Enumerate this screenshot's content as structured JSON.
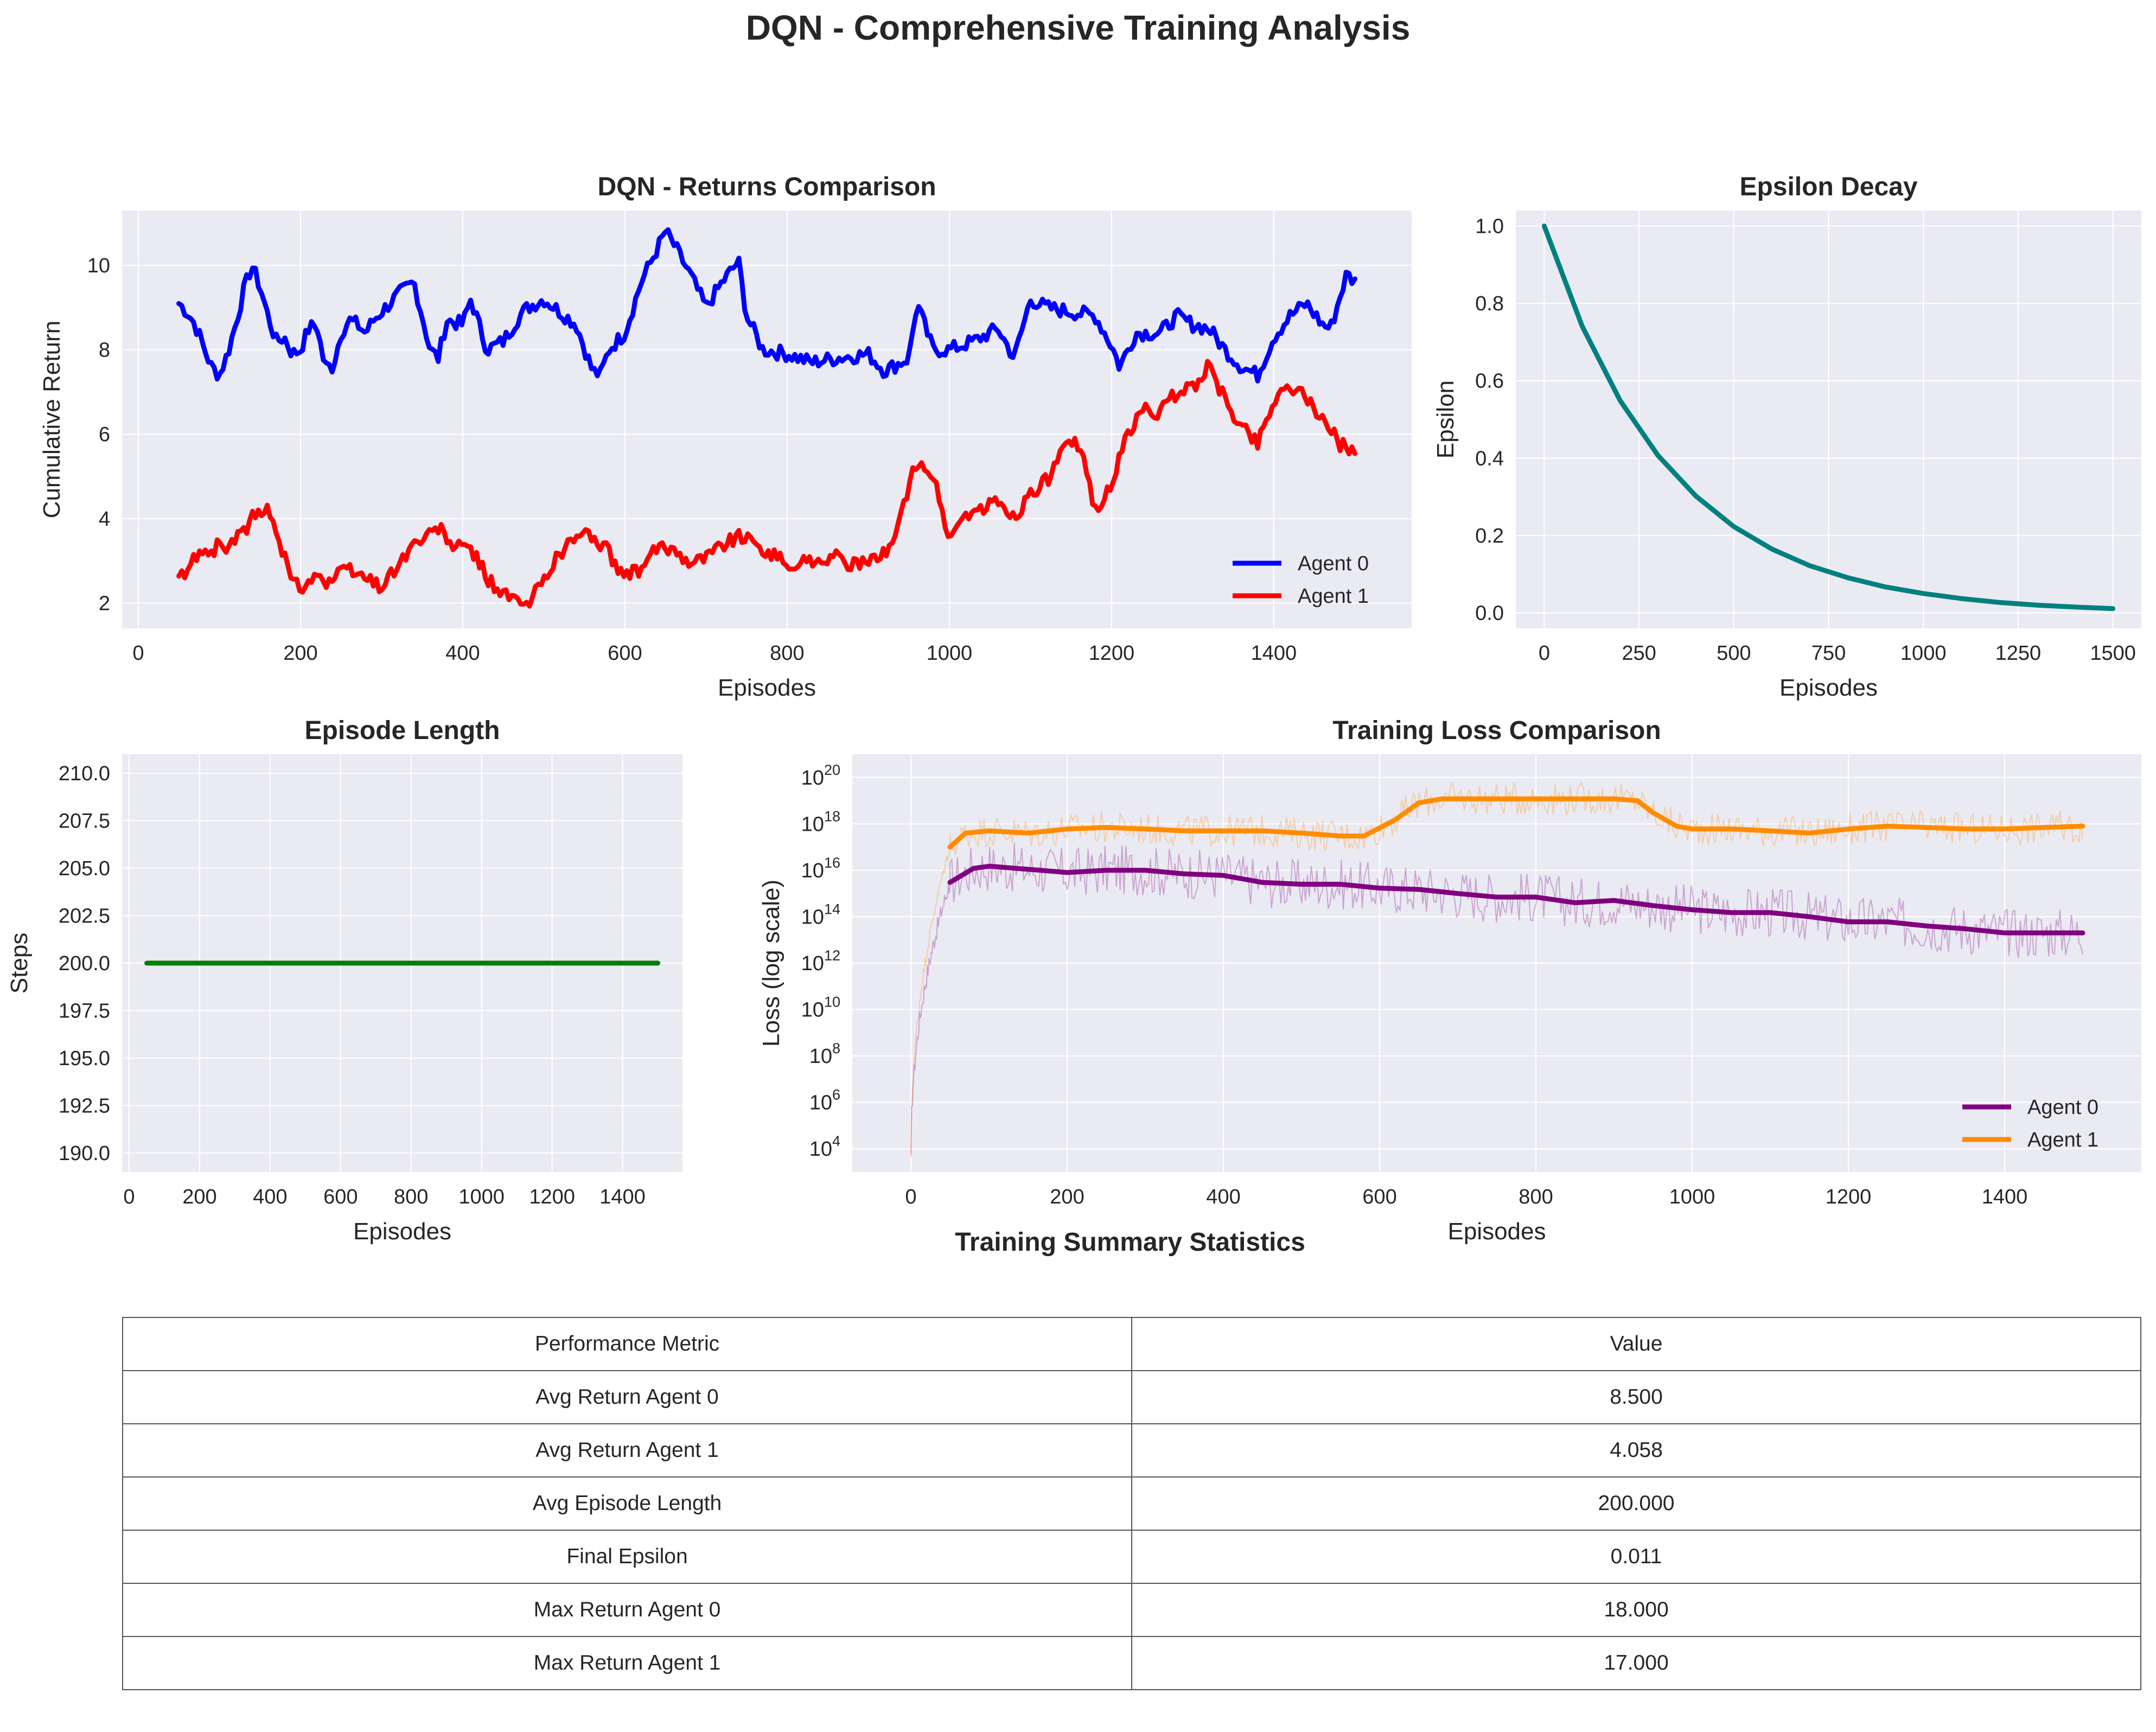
{
  "figure": {
    "title": "DQN - Comprehensive Training Analysis"
  },
  "colors": {
    "agent0_returns": "#0000ff",
    "agent1_returns": "#ff0000",
    "epsilon": "#008080",
    "episode_length": "#008000",
    "agent0_loss": "#800080",
    "agent1_loss": "#ff8c00",
    "axes_background": "#eaeaf2"
  },
  "chart_data": [
    {
      "id": "returns",
      "type": "line",
      "title": "DQN - Returns Comparison",
      "xlabel": "Episodes",
      "ylabel": "Cumulative Return",
      "xlim": [
        -20,
        1570
      ],
      "ylim": [
        1.4,
        11.3
      ],
      "xticks": [
        0,
        200,
        400,
        600,
        800,
        1000,
        1200,
        1400
      ],
      "yticks": [
        2,
        4,
        6,
        8,
        10
      ],
      "grid": true,
      "legend": "lower-right",
      "series": [
        {
          "name": "Agent 0",
          "color": "#0000ff",
          "x": [
            50,
            60,
            70,
            80,
            90,
            100,
            110,
            120,
            130,
            140,
            150,
            160,
            170,
            180,
            190,
            200,
            210,
            220,
            230,
            240,
            250,
            260,
            270,
            280,
            290,
            300,
            320,
            340,
            360,
            370,
            380,
            400,
            410,
            430,
            450,
            470,
            480,
            500,
            520,
            540,
            560,
            570,
            580,
            600,
            620,
            640,
            650,
            660,
            680,
            700,
            720,
            740,
            750,
            770,
            800,
            830,
            860,
            900,
            920,
            950,
            960,
            980,
            1000,
            1030,
            1060,
            1080,
            1100,
            1120,
            1150,
            1180,
            1200,
            1210,
            1230,
            1260,
            1280,
            1300,
            1320,
            1340,
            1360,
            1380,
            1400,
            1420,
            1440,
            1460,
            1470,
            1490,
            1500
          ],
          "y": [
            9.1,
            8.9,
            8.6,
            8.1,
            7.6,
            7.4,
            7.9,
            8.6,
            9.4,
            10.0,
            9.5,
            8.8,
            8.2,
            8.3,
            7.9,
            8.0,
            8.5,
            8.6,
            7.6,
            7.6,
            8.4,
            8.7,
            8.6,
            8.4,
            8.7,
            8.9,
            9.3,
            9.6,
            8.0,
            7.8,
            8.7,
            8.6,
            9.2,
            8.0,
            8.2,
            8.8,
            9.0,
            9.2,
            8.9,
            8.6,
            7.5,
            7.4,
            8.0,
            8.4,
            9.6,
            10.4,
            10.8,
            10.5,
            9.8,
            9.0,
            9.6,
            10.1,
            8.8,
            8.0,
            7.9,
            7.7,
            7.8,
            7.9,
            7.5,
            7.8,
            9.1,
            8.0,
            8.0,
            8.2,
            8.5,
            7.8,
            9.2,
            9.0,
            8.9,
            8.8,
            8.1,
            7.6,
            8.4,
            8.4,
            8.8,
            8.6,
            8.5,
            8.0,
            7.6,
            7.4,
            8.3,
            8.8,
            9.1,
            8.6,
            8.5,
            9.8,
            9.6
          ]
        },
        {
          "name": "Agent 1",
          "color": "#ff0000",
          "x": [
            50,
            60,
            70,
            80,
            90,
            100,
            110,
            120,
            130,
            140,
            150,
            160,
            170,
            180,
            190,
            200,
            210,
            220,
            230,
            240,
            260,
            280,
            300,
            320,
            340,
            360,
            370,
            390,
            410,
            430,
            450,
            470,
            480,
            500,
            520,
            540,
            560,
            580,
            600,
            620,
            640,
            660,
            680,
            700,
            720,
            740,
            760,
            780,
            800,
            830,
            860,
            880,
            900,
            920,
            940,
            960,
            980,
            1000,
            1020,
            1040,
            1060,
            1080,
            1100,
            1120,
            1140,
            1160,
            1180,
            1200,
            1220,
            1240,
            1260,
            1280,
            1300,
            1320,
            1340,
            1360,
            1380,
            1400,
            1420,
            1440,
            1460,
            1480,
            1500
          ],
          "y": [
            2.6,
            2.7,
            3.1,
            3.3,
            3.2,
            3.4,
            3.3,
            3.5,
            3.7,
            4.0,
            4.1,
            4.2,
            3.8,
            3.1,
            2.5,
            2.4,
            2.5,
            2.8,
            2.4,
            2.6,
            2.8,
            2.6,
            2.4,
            2.9,
            3.4,
            3.6,
            3.8,
            3.3,
            3.3,
            2.6,
            2.2,
            2.0,
            1.9,
            2.6,
            3.2,
            3.6,
            3.6,
            3.2,
            2.6,
            2.8,
            3.3,
            3.3,
            3.0,
            3.1,
            3.4,
            3.6,
            3.4,
            3.2,
            2.9,
            3.0,
            3.1,
            2.9,
            2.9,
            3.2,
            4.0,
            5.4,
            5.0,
            3.5,
            4.1,
            4.2,
            4.4,
            4.0,
            4.6,
            4.9,
            5.6,
            5.8,
            4.2,
            4.8,
            6.0,
            6.6,
            6.5,
            7.0,
            7.1,
            7.6,
            6.8,
            6.2,
            5.8,
            6.8,
            7.2,
            6.8,
            6.4,
            5.8,
            5.6
          ]
        }
      ]
    },
    {
      "id": "epsilon",
      "type": "line",
      "title": "Epsilon Decay",
      "xlabel": "Episodes",
      "ylabel": "Epsilon",
      "xlim": [
        -75,
        1575
      ],
      "ylim": [
        -0.04,
        1.04
      ],
      "xticks": [
        0,
        250,
        500,
        750,
        1000,
        1250,
        1500
      ],
      "yticks": [
        0.0,
        0.2,
        0.4,
        0.6,
        0.8,
        1.0
      ],
      "grid": true,
      "series": [
        {
          "color": "#008080",
          "x": [
            0,
            100,
            200,
            300,
            400,
            500,
            600,
            700,
            800,
            900,
            1000,
            1100,
            1200,
            1300,
            1400,
            1500
          ],
          "y": [
            1.0,
            0.741,
            0.549,
            0.407,
            0.302,
            0.223,
            0.165,
            0.122,
            0.091,
            0.067,
            0.05,
            0.037,
            0.027,
            0.02,
            0.015,
            0.011
          ]
        }
      ]
    },
    {
      "id": "episode_length",
      "type": "line",
      "title": "Episode Length",
      "xlabel": "Episodes",
      "ylabel": "Steps",
      "xlim": [
        -20,
        1570
      ],
      "ylim": [
        189,
        211
      ],
      "xticks": [
        0,
        200,
        400,
        600,
        800,
        1000,
        1200,
        1400
      ],
      "yticks": [
        190.0,
        192.5,
        195.0,
        197.5,
        200.0,
        202.5,
        205.0,
        207.5,
        210.0
      ],
      "grid": true,
      "series": [
        {
          "color": "#008000",
          "x": [
            50,
            1500
          ],
          "y": [
            200,
            200
          ]
        }
      ]
    },
    {
      "id": "loss",
      "type": "line",
      "title": "Training Loss Comparison",
      "xlabel": "Episodes",
      "ylabel": "Loss (log scale)",
      "yscale": "log",
      "xlim": [
        -75,
        1575
      ],
      "ylim": [
        1000,
        1e+21
      ],
      "xticks": [
        0,
        200,
        400,
        600,
        800,
        1000,
        1200,
        1400
      ],
      "yticks": [
        10000,
        1000000,
        100000000,
        10000000000,
        1000000000000,
        100000000000000,
        10000000000000000,
        1000000000000000000,
        100000000000000000000
      ],
      "ytick_labels": [
        {
          "base": "10",
          "exp": "4"
        },
        {
          "base": "10",
          "exp": "6"
        },
        {
          "base": "10",
          "exp": "8"
        },
        {
          "base": "10",
          "exp": "10"
        },
        {
          "base": "10",
          "exp": "12"
        },
        {
          "base": "10",
          "exp": "14"
        },
        {
          "base": "10",
          "exp": "16"
        },
        {
          "base": "10",
          "exp": "18"
        },
        {
          "base": "10",
          "exp": "20"
        }
      ],
      "grid": true,
      "legend": "lower-right",
      "series": [
        {
          "name": "Agent 0",
          "color": "#800080",
          "x": [
            50,
            80,
            100,
            150,
            200,
            250,
            300,
            350,
            400,
            450,
            500,
            550,
            600,
            650,
            700,
            750,
            800,
            850,
            900,
            950,
            1000,
            1050,
            1100,
            1150,
            1200,
            1250,
            1300,
            1350,
            1400,
            1450,
            1500
          ],
          "y": [
            3000000000000000.0,
            1.2e+16,
            1.5e+16,
            1.1e+16,
            8000000000000000.0,
            1e+16,
            1e+16,
            7000000000000000.0,
            6000000000000000.0,
            3000000000000000.0,
            2500000000000000.0,
            2500000000000000.0,
            1700000000000000.0,
            1500000000000000.0,
            1000000000000000.0,
            700000000000000.0,
            700000000000000.0,
            400000000000000.0,
            500000000000000.0,
            300000000000000.0,
            200000000000000.0,
            150000000000000.0,
            150000000000000.0,
            100000000000000.0,
            60000000000000.0,
            60000000000000.0,
            40000000000000.0,
            30000000000000.0,
            20000000000000.0,
            20000000000000.0,
            20000000000000.0
          ]
        },
        {
          "name": "Agent 1",
          "color": "#ff8c00",
          "x": [
            50,
            70,
            100,
            150,
            200,
            250,
            300,
            350,
            400,
            450,
            500,
            550,
            580,
            620,
            650,
            680,
            700,
            750,
            800,
            850,
            900,
            930,
            950,
            980,
            1000,
            1050,
            1100,
            1150,
            1200,
            1250,
            1300,
            1350,
            1400,
            1450,
            1500
          ],
          "y": [
            1e+17,
            4e+17,
            5e+17,
            4e+17,
            6e+17,
            7e+17,
            6e+17,
            5e+17,
            5e+17,
            5e+17,
            4e+17,
            3e+17,
            3e+17,
            1.5e+18,
            8e+18,
            1.2e+19,
            1.2e+19,
            1.2e+19,
            1.2e+19,
            1.2e+19,
            1.2e+19,
            1e+19,
            3e+18,
            8e+17,
            6e+17,
            6e+17,
            5e+17,
            4e+17,
            6e+17,
            8e+17,
            7e+17,
            6e+17,
            6e+17,
            7e+17,
            8e+17
          ]
        }
      ]
    }
  ],
  "summary": {
    "title": "Training Summary Statistics",
    "header": [
      "Performance Metric",
      "Value"
    ],
    "rows": [
      [
        "Avg Return Agent 0",
        "8.500"
      ],
      [
        "Avg Return Agent 1",
        "4.058"
      ],
      [
        "Avg Episode Length",
        "200.000"
      ],
      [
        "Final Epsilon",
        "0.011"
      ],
      [
        "Max Return Agent 0",
        "18.000"
      ],
      [
        "Max Return Agent 1",
        "17.000"
      ]
    ]
  }
}
